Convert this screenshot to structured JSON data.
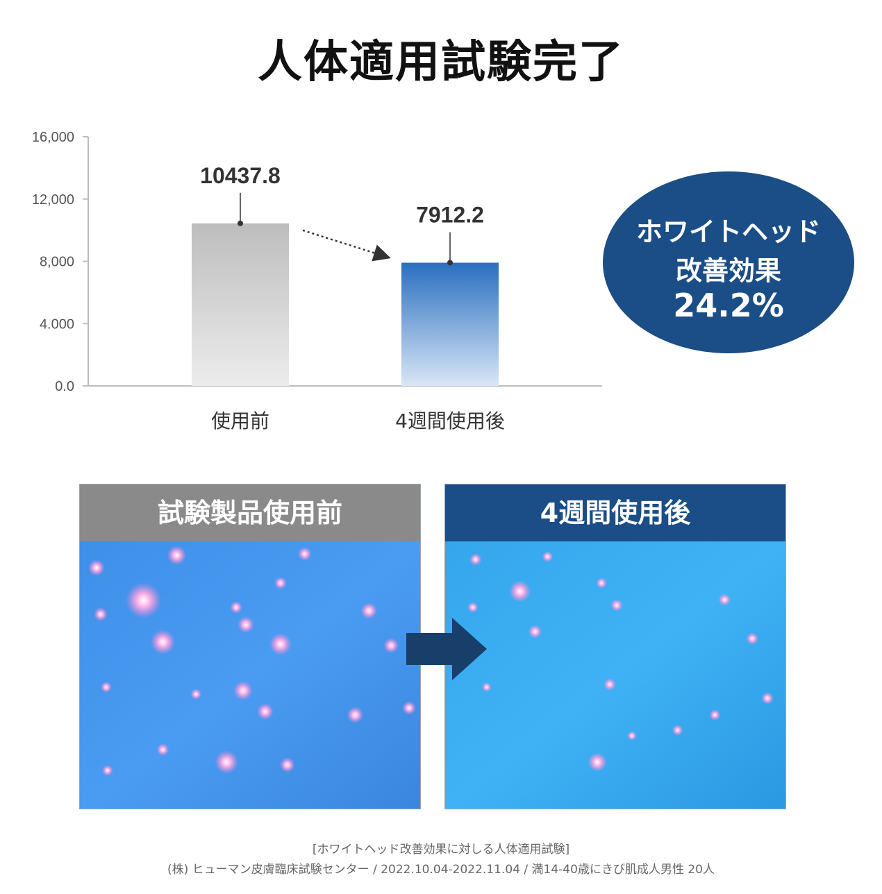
{
  "title": "人体適用試験完了",
  "chart_data": {
    "type": "bar",
    "categories": [
      "使用前",
      "4週間使用後"
    ],
    "values": [
      10437.8,
      7912.2
    ],
    "data_labels": [
      "10437.8",
      "7912.2"
    ],
    "ylim": [
      0,
      16000
    ],
    "yticks": [
      0,
      4000,
      8000,
      12000,
      16000
    ],
    "ytick_labels": [
      "0.0",
      "4.000",
      "8,000",
      "12,000",
      "16,000"
    ],
    "grid": false,
    "colors": {
      "before": "#c4c4c4",
      "after": "#2f74c0"
    }
  },
  "badge": {
    "line1": "ホワイトヘッド",
    "line2": "改善効果",
    "value": "24.2%"
  },
  "panels": {
    "before_label": "試験製品使用前",
    "after_label": "4週間使用後"
  },
  "footer": {
    "line1": "[ホワイトヘッド改善効果に対しる人体適用試験]",
    "line2": "(株) ヒューマン皮膚臨床試験センター / 2022.10.04-2022.11.04 / 満14-40歳にきび肌成人男性 20人"
  }
}
